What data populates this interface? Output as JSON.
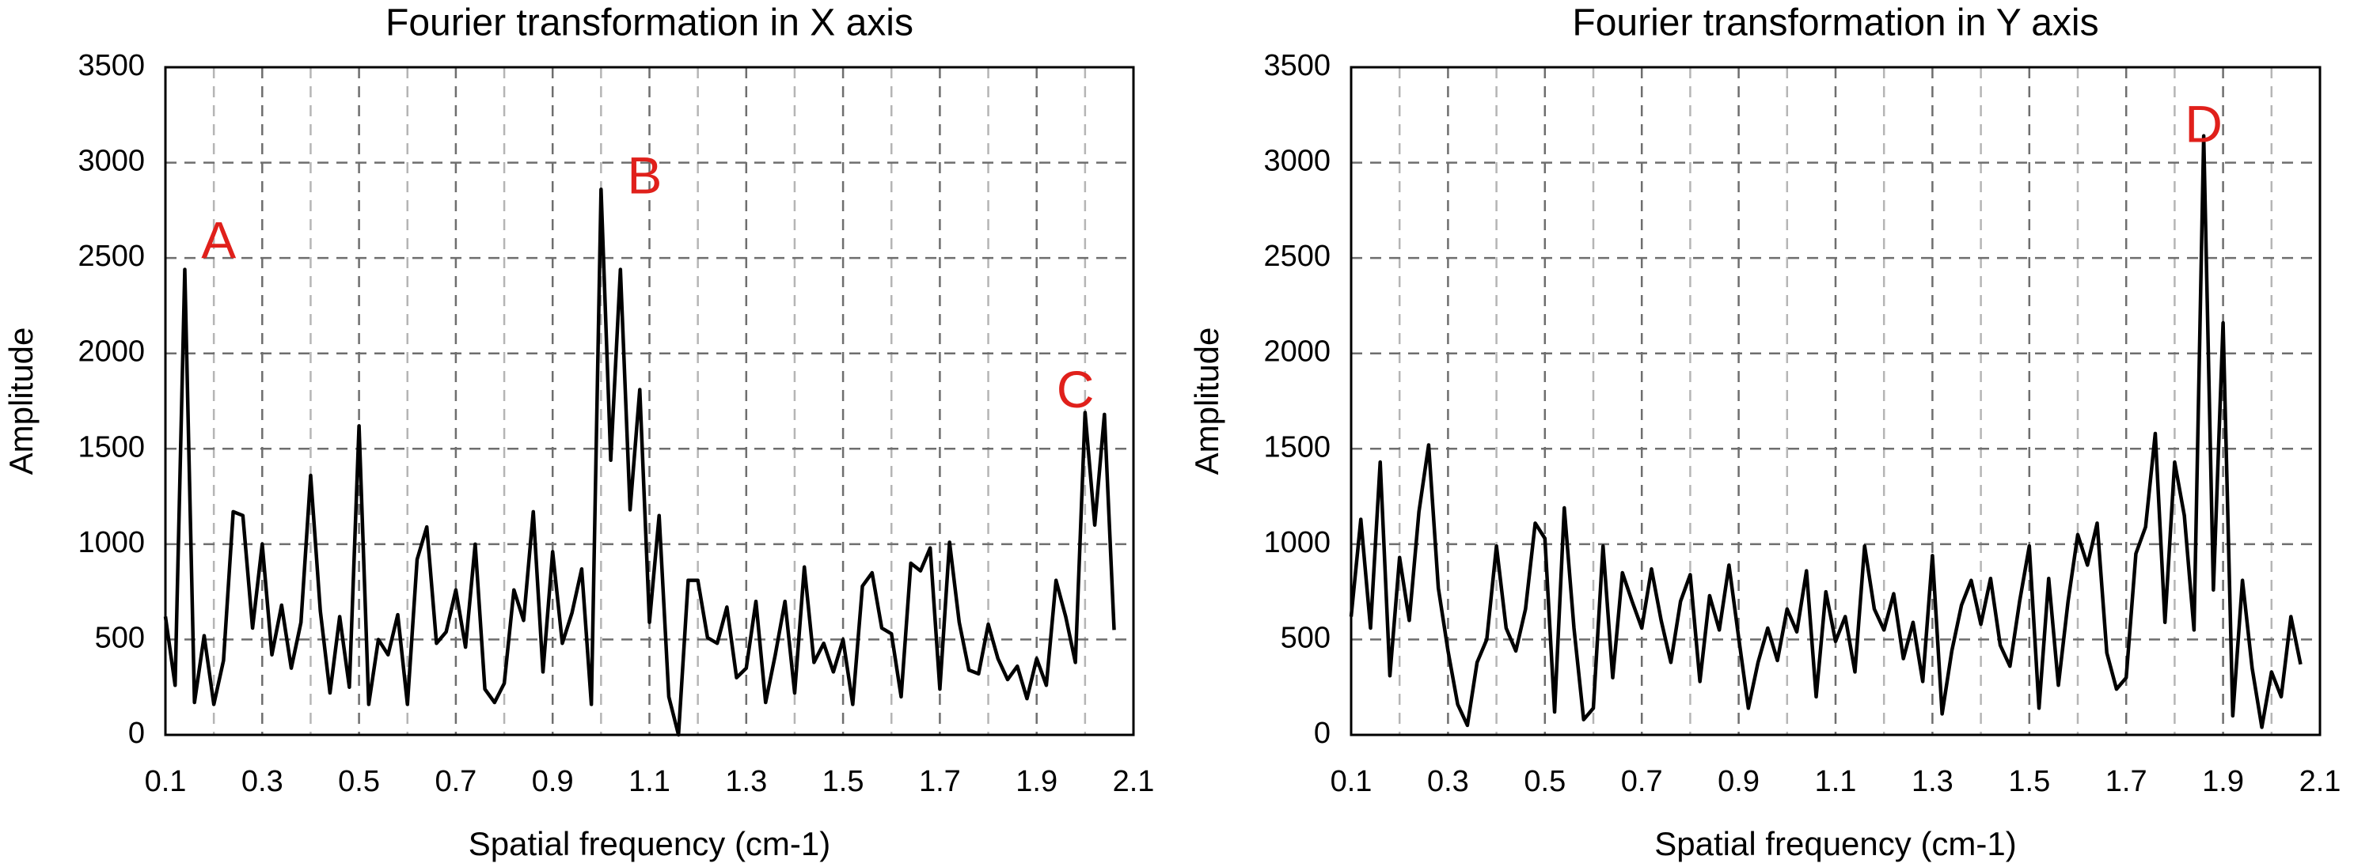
{
  "chart_data": [
    {
      "type": "line",
      "title": "Fourier transformation in X axis",
      "x_label": "Spatial frequency (cm-1)",
      "y_label": "Amplitude",
      "x": [
        0.1,
        0.12,
        0.14,
        0.16,
        0.18,
        0.2,
        0.22,
        0.24,
        0.26,
        0.28,
        0.3,
        0.32,
        0.34,
        0.36,
        0.38,
        0.4,
        0.42,
        0.44,
        0.46,
        0.48,
        0.5,
        0.52,
        0.54,
        0.56,
        0.58,
        0.6,
        0.62,
        0.64,
        0.66,
        0.68,
        0.7,
        0.72,
        0.74,
        0.76,
        0.78,
        0.8,
        0.82,
        0.84,
        0.86,
        0.88,
        0.9,
        0.92,
        0.94,
        0.96,
        0.98,
        1.0,
        1.02,
        1.04,
        1.06,
        1.08,
        1.1,
        1.12,
        1.14,
        1.16,
        1.18,
        1.2,
        1.22,
        1.24,
        1.26,
        1.28,
        1.3,
        1.32,
        1.34,
        1.36,
        1.38,
        1.4,
        1.42,
        1.44,
        1.46,
        1.48,
        1.5,
        1.52,
        1.54,
        1.56,
        1.58,
        1.6,
        1.62,
        1.64,
        1.66,
        1.68,
        1.7,
        1.72,
        1.74,
        1.76,
        1.78,
        1.8,
        1.82,
        1.84,
        1.86,
        1.88,
        1.9,
        1.92,
        1.94,
        1.96,
        1.98,
        2.0,
        2.02,
        2.04,
        2.06
      ],
      "series": [
        {
          "color": "#000000",
          "values": [
            620,
            260,
            2440,
            170,
            520,
            160,
            390,
            1170,
            1150,
            560,
            1000,
            420,
            680,
            350,
            590,
            1360,
            650,
            220,
            620,
            250,
            1620,
            160,
            500,
            420,
            630,
            160,
            920,
            1090,
            480,
            540,
            760,
            460,
            1000,
            240,
            170,
            270,
            760,
            600,
            1170,
            330,
            960,
            480,
            640,
            870,
            160,
            2860,
            1440,
            2440,
            1180,
            1810,
            590,
            1150,
            200,
            0,
            810,
            810,
            510,
            480,
            670,
            300,
            350,
            700,
            170,
            420,
            700,
            220,
            880,
            380,
            480,
            330,
            500,
            160,
            780,
            850,
            560,
            530,
            200,
            900,
            860,
            980,
            240,
            1010,
            590,
            340,
            320,
            580,
            400,
            290,
            360,
            190,
            400,
            260,
            810,
            620,
            380,
            1690,
            1100,
            1680,
            550
          ]
        }
      ],
      "xlim": [
        0.1,
        2.1
      ],
      "ylim": [
        0,
        3500
      ],
      "xticks": [
        0.1,
        0.3,
        0.5,
        0.7,
        0.9,
        1.1,
        1.3,
        1.5,
        1.7,
        1.9,
        2.1
      ],
      "x_minor_ticks": [
        0.2,
        0.4,
        0.6,
        0.8,
        1.0,
        1.2,
        1.4,
        1.6,
        1.8,
        2.0
      ],
      "yticks": [
        0,
        500,
        1000,
        1500,
        2000,
        2500,
        3000,
        3500
      ],
      "grid": true,
      "annotations": [
        {
          "text": "A",
          "x": 0.21,
          "y": 2570,
          "color": "#e0201b"
        },
        {
          "text": "B",
          "x": 1.09,
          "y": 2910,
          "color": "#e0201b"
        },
        {
          "text": "C",
          "x": 1.98,
          "y": 1790,
          "color": "#e0201b"
        }
      ]
    },
    {
      "type": "line",
      "title": "Fourier transformation in Y axis",
      "x_label": "Spatial frequency (cm-1)",
      "y_label": "Amplitude",
      "x": [
        0.1,
        0.12,
        0.14,
        0.16,
        0.18,
        0.2,
        0.22,
        0.24,
        0.26,
        0.28,
        0.3,
        0.32,
        0.34,
        0.36,
        0.38,
        0.4,
        0.42,
        0.44,
        0.46,
        0.48,
        0.5,
        0.52,
        0.54,
        0.56,
        0.58,
        0.6,
        0.62,
        0.64,
        0.66,
        0.68,
        0.7,
        0.72,
        0.74,
        0.76,
        0.78,
        0.8,
        0.82,
        0.84,
        0.86,
        0.88,
        0.9,
        0.92,
        0.94,
        0.96,
        0.98,
        1.0,
        1.02,
        1.04,
        1.06,
        1.08,
        1.1,
        1.12,
        1.14,
        1.16,
        1.18,
        1.2,
        1.22,
        1.24,
        1.26,
        1.28,
        1.3,
        1.32,
        1.34,
        1.36,
        1.38,
        1.4,
        1.42,
        1.44,
        1.46,
        1.48,
        1.5,
        1.52,
        1.54,
        1.56,
        1.58,
        1.6,
        1.62,
        1.64,
        1.66,
        1.68,
        1.7,
        1.72,
        1.74,
        1.76,
        1.78,
        1.8,
        1.82,
        1.84,
        1.86,
        1.88,
        1.9,
        1.92,
        1.94,
        1.96,
        1.98,
        2.0,
        2.02,
        2.04,
        2.06
      ],
      "series": [
        {
          "color": "#000000",
          "values": [
            620,
            1130,
            560,
            1430,
            310,
            930,
            600,
            1170,
            1520,
            770,
            440,
            160,
            50,
            380,
            500,
            990,
            560,
            440,
            660,
            1110,
            1030,
            120,
            1190,
            560,
            80,
            140,
            990,
            300,
            850,
            700,
            560,
            870,
            600,
            380,
            700,
            840,
            280,
            730,
            550,
            890,
            510,
            140,
            380,
            560,
            390,
            660,
            540,
            860,
            200,
            750,
            490,
            620,
            330,
            990,
            660,
            550,
            740,
            400,
            590,
            280,
            940,
            110,
            440,
            680,
            810,
            580,
            820,
            470,
            360,
            700,
            990,
            140,
            820,
            260,
            700,
            1050,
            890,
            1110,
            430,
            240,
            300,
            950,
            1090,
            1580,
            590,
            1430,
            1150,
            550,
            3140,
            760,
            2160,
            100,
            810,
            350,
            40,
            330,
            200,
            620,
            370
          ]
        }
      ],
      "xlim": [
        0.1,
        2.1
      ],
      "ylim": [
        0,
        3500
      ],
      "xticks": [
        0.1,
        0.3,
        0.5,
        0.7,
        0.9,
        1.1,
        1.3,
        1.5,
        1.7,
        1.9,
        2.1
      ],
      "x_minor_ticks": [
        0.2,
        0.4,
        0.6,
        0.8,
        1.0,
        1.2,
        1.4,
        1.6,
        1.8,
        2.0
      ],
      "yticks": [
        0,
        500,
        1000,
        1500,
        2000,
        2500,
        3000,
        3500
      ],
      "grid": true,
      "annotations": [
        {
          "text": "D",
          "x": 1.86,
          "y": 3180,
          "color": "#e0201b"
        }
      ]
    }
  ]
}
